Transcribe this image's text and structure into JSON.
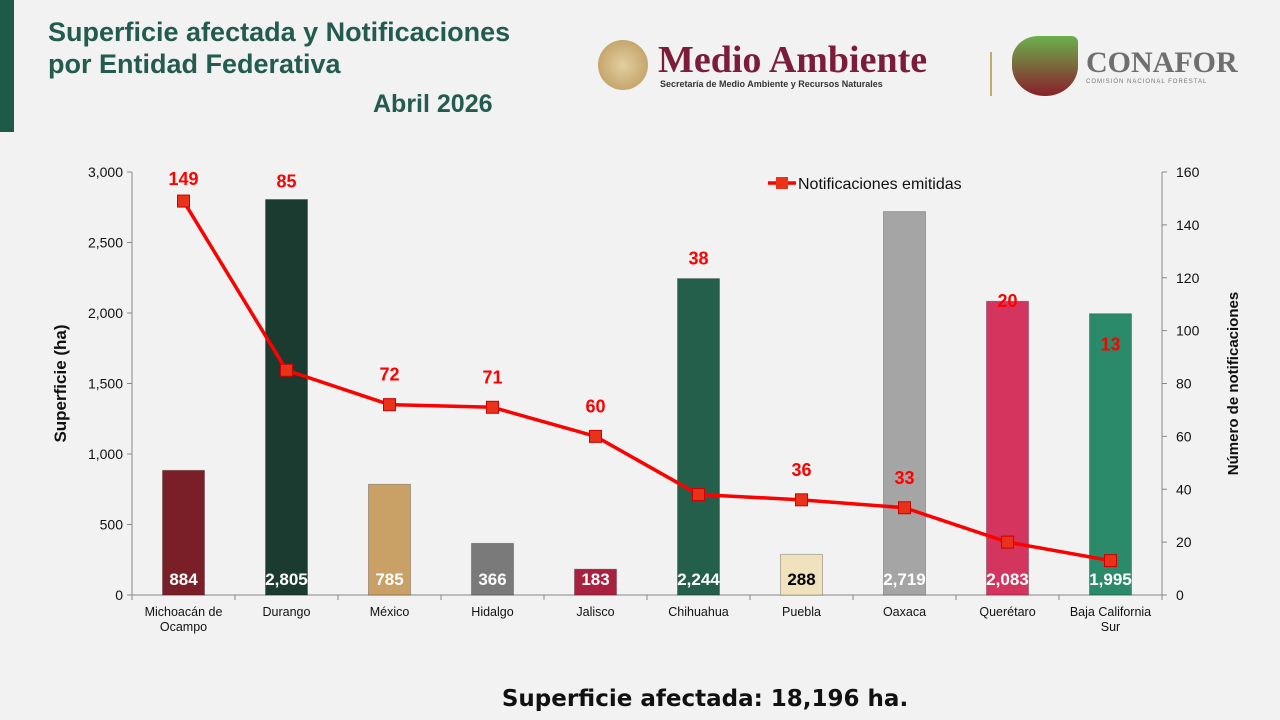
{
  "header": {
    "title_line1": "Superficie  afectada  y  Notificaciones",
    "title_line2": "por Entidad Federativa",
    "date": "Abril 2026"
  },
  "logos": {
    "semarnat": "Medio Ambiente",
    "semarnat_sub": "Secretaría de Medio Ambiente y Recursos Naturales",
    "conafor": "CONAFOR",
    "conafor_sub": "COMISIÓN NACIONAL FORESTAL"
  },
  "footer": "Superficie afectada: 18,196 ha.",
  "chart_data": {
    "type": "bar",
    "categories": [
      "Michoacán de Ocampo",
      "Durango",
      "México",
      "Hidalgo",
      "Jalisco",
      "Chihuahua",
      "Puebla",
      "Oaxaca",
      "Querétaro",
      "Baja California Sur"
    ],
    "category_lines": [
      [
        "Michoacán de",
        "Ocampo"
      ],
      [
        "Durango"
      ],
      [
        "México"
      ],
      [
        "Hidalgo"
      ],
      [
        "Jalisco"
      ],
      [
        "Chihuahua"
      ],
      [
        "Puebla"
      ],
      [
        "Oaxaca"
      ],
      [
        "Querétaro"
      ],
      [
        "Baja California",
        "Sur"
      ]
    ],
    "series": [
      {
        "name": "Superficie (ha)",
        "type": "bar",
        "axis": "left",
        "values": [
          884,
          2805,
          785,
          366,
          183,
          2244,
          288,
          2719,
          2083,
          1995
        ],
        "labels": [
          "884",
          "2,805",
          "785",
          "366",
          "183",
          "2,244",
          "288",
          "2,719",
          "2,083",
          "1,995"
        ],
        "colors": [
          "#7a1f28",
          "#1b3a30",
          "#c9a066",
          "#7a7a7a",
          "#a8213f",
          "#245f4c",
          "#efe2bd",
          "#a5a5a5",
          "#d3355f",
          "#2b8a69"
        ],
        "label_colors": [
          "#fff",
          "#fff",
          "#fff",
          "#fff",
          "#fff",
          "#fff",
          "#000",
          "#fff",
          "#fff",
          "#fff"
        ]
      },
      {
        "name": "Notificaciones emitidas",
        "type": "line",
        "axis": "right",
        "values": [
          149,
          85,
          72,
          71,
          60,
          38,
          36,
          33,
          20,
          13
        ],
        "color": "#ff0000"
      }
    ],
    "ylabel": "Superficie (ha)",
    "y2label": "Número de notificaciones",
    "ylim": [
      0,
      3000
    ],
    "yticks": [
      0,
      500,
      1000,
      1500,
      2000,
      2500,
      3000
    ],
    "ytick_labels": [
      "0",
      "500",
      "1,000",
      "1,500",
      "2,000",
      "2,500",
      "3,000"
    ],
    "y2lim": [
      0,
      160
    ],
    "y2ticks": [
      0,
      20,
      40,
      60,
      80,
      100,
      120,
      140,
      160
    ],
    "legend": "top-right",
    "grid": false
  }
}
